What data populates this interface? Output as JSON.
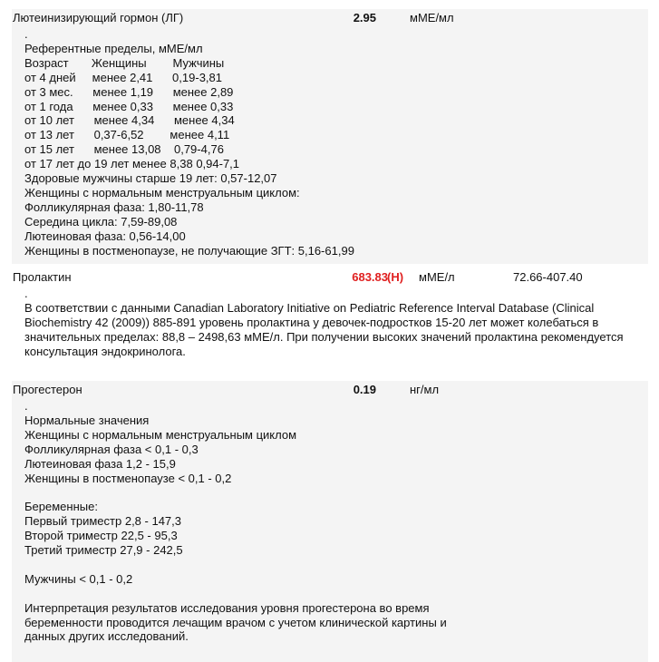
{
  "tests": [
    {
      "name": "Лютеинизирующий гормон (ЛГ)",
      "value": "2.95",
      "flag": "",
      "unit": "мМЕ/мл",
      "ref": "",
      "notes": [
        ".",
        "Референтные пределы, мМЕ/мл",
        "Возраст       Женщины        Мужчины",
        "от 4 дней     менее 2,41      0,19-3,81",
        "от 3 мес.      менее 1,19      менее 2,89",
        "от 1 года      менее 0,33      менее 0,33",
        "от 10 лет      менее 4,34      менее 4,34",
        "от 13 лет      0,37-6,52        менее 4,11",
        "от 15 лет      менее 13,08    0,79-4,76",
        "от 17 лет до 19 лет менее 8,38 0,94-7,1",
        "Здоровые мужчины старше 19 лет: 0,57-12,07",
        "Женщины с нормальным менструальным циклом:",
        "Фолликулярная фаза: 1,80-11,78",
        "Середина цикла: 7,59-89,08",
        "Лютеиновая фаза: 0,56-14,00",
        "Женщины в постменопаузе, не получающие ЗГТ: 5,16-61,99"
      ]
    },
    {
      "name": "Пролактин",
      "value": "683.83",
      "flag": "(H)",
      "unit": "мМЕ/л",
      "ref": "72.66-407.40",
      "notes": [
        "."
      ],
      "paragraph": "В соответствии с данными Canadian Laboratory Initiative on Pediatric Reference Interval Database (Clinical Biochemistry 42 (2009)) 885-891 уровень пролактина у девочек-подростков 15-20 лет может колебаться в значительных пределах: 88,8 – 2498,63 мМЕ/л. При получении высоких значений пролактина рекомендуется консультация эндокринолога."
    },
    {
      "name": "Прогестерон",
      "value": "0.19",
      "flag": "",
      "unit": "нг/мл",
      "ref": "",
      "notes": [
        ".",
        "Нормальные значения",
        "Женщины с нормальным менструальным циклом",
        "Фолликулярная фаза < 0,1 - 0,3",
        "Лютеиновая фаза 1,2 - 15,9",
        "Женщины в постменопаузе < 0,1 - 0,2",
        "",
        "Беременные:",
        "Первый триместр 2,8 - 147,3",
        "Второй триместр 22,5 - 95,3",
        "Третий триместр 27,9 - 242,5",
        "",
        "Мужчины < 0,1 - 0,2",
        "",
        "Интерпретация результатов исследования уровня прогестерона во время",
        "беременности проводится лечащим врачом с учетом клинической картины и",
        "данных других исследований."
      ]
    }
  ]
}
